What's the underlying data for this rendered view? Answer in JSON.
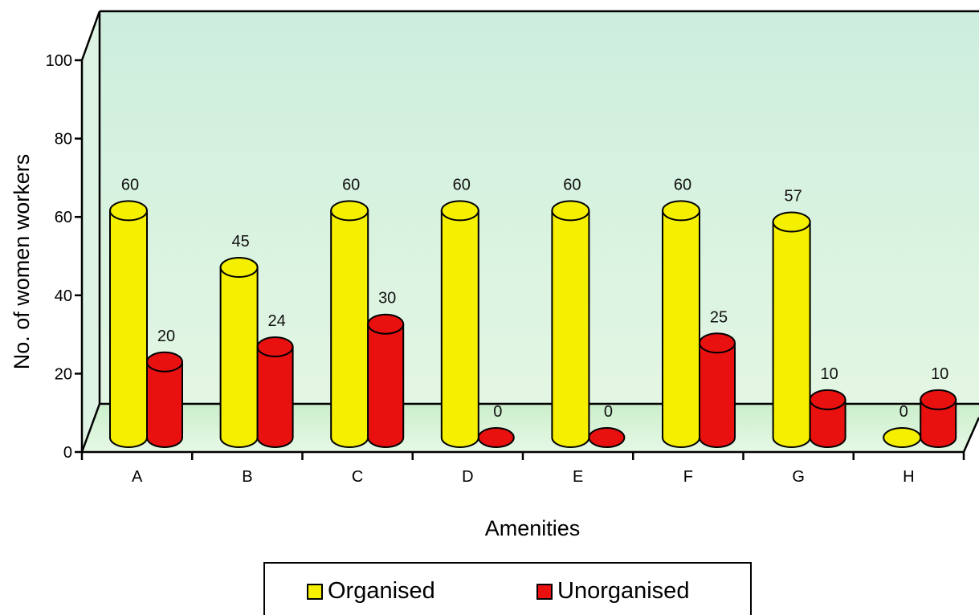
{
  "chart_data": {
    "type": "bar",
    "title": "",
    "xlabel": "Amenities",
    "ylabel": "No. of women workers",
    "ylim": [
      0,
      100
    ],
    "yticks": [
      "0",
      "20",
      "40",
      "60",
      "80",
      "100"
    ],
    "categories": [
      "A",
      "B",
      "C",
      "D",
      "E",
      "F",
      "G",
      "H"
    ],
    "series": [
      {
        "name": "Organised",
        "values": [
          60,
          45,
          60,
          60,
          60,
          60,
          57,
          0
        ],
        "color": "#f5ef00"
      },
      {
        "name": "Unorganised",
        "values": [
          20,
          24,
          30,
          0,
          0,
          25,
          10,
          10
        ],
        "color": "#e8110f"
      }
    ],
    "grid": false,
    "legend_position": "bottom-center",
    "bar_shape": "3d-cylinder",
    "floor_color": "#d6f2d6"
  }
}
